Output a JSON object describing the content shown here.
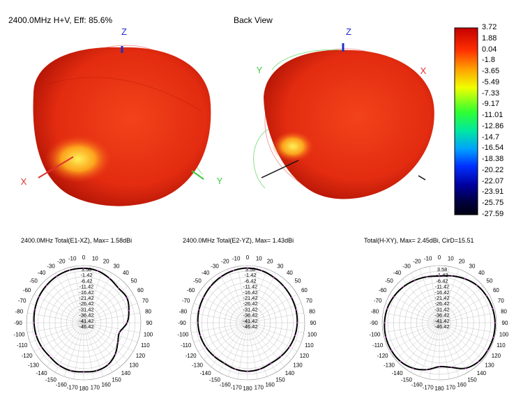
{
  "header": {
    "freq_label": "2400.0MHz H+V, Eff: 85.6%",
    "back_view_label": "Back View"
  },
  "axes3d": {
    "z": "Z",
    "x": "X",
    "y": "Y"
  },
  "colorbar": {
    "labels": [
      "3.72",
      "1.88",
      "0.04",
      "-1.8",
      "-3.65",
      "-5.49",
      "-7.33",
      "-9.17",
      "-11.01",
      "-12.86",
      "-14.7",
      "-16.54",
      "-18.38",
      "-20.22",
      "-22.07",
      "-23.91",
      "-25.75",
      "-27.59"
    ]
  },
  "colors": {
    "pattern_fill": "#e8320f",
    "pattern_dark": "#b81206",
    "hotspot": "#ffe33a",
    "curve": "#000000",
    "grid": "#c8c8c8",
    "marker": "#e040e0"
  },
  "chart_data": [
    {
      "type": "polar",
      "title": "2400.0MHz Total(E1-XZ), Max= 1.58dBi",
      "angle_labels": [
        "0",
        "10",
        "20",
        "30",
        "40",
        "50",
        "60",
        "70",
        "80",
        "90",
        "100",
        "110",
        "120",
        "130",
        "140",
        "150",
        "160",
        "170",
        "180",
        "-170",
        "-160",
        "-150",
        "-140",
        "-130",
        "-120",
        "-110",
        "-100",
        "-90",
        "-80",
        "-70",
        "-60",
        "-50",
        "-40",
        "-30",
        "-20",
        "-10"
      ],
      "radial_labels": [
        "3.58",
        "-1.42",
        "-6.42",
        "-11.42",
        "-16.42",
        "-21.42",
        "-26.42",
        "-31.42",
        "-36.42",
        "-41.42",
        "-46.42"
      ],
      "rlim": [
        -46.42,
        3.58
      ],
      "series": [
        {
          "angles": [
            0,
            15,
            30,
            45,
            60,
            75,
            90,
            105,
            120,
            135,
            150,
            165,
            180,
            -165,
            -150,
            -135,
            -120,
            -105,
            -90,
            -75,
            -60,
            -45,
            -30,
            -15
          ],
          "values": [
            1.2,
            0.6,
            -1.5,
            -3.5,
            -2.8,
            -5.5,
            -8.5,
            -14,
            -12,
            -7.5,
            -4,
            -3,
            -3.5,
            -3,
            -3.5,
            -4.5,
            -4,
            -3.5,
            -3,
            -2.2,
            -1.2,
            -0.3,
            0.6,
            1.2
          ]
        }
      ]
    },
    {
      "type": "polar",
      "title": "2400.0MHz Total(E2-YZ), Max= 1.43dBi",
      "angle_labels": [
        "0",
        "10",
        "20",
        "30",
        "40",
        "50",
        "60",
        "70",
        "80",
        "90",
        "100",
        "110",
        "120",
        "130",
        "140",
        "150",
        "160",
        "170",
        "180",
        "-170",
        "-160",
        "-150",
        "-140",
        "-130",
        "-120",
        "-110",
        "-100",
        "-90",
        "-80",
        "-70",
        "-60",
        "-50",
        "-40",
        "-30",
        "-20",
        "-10"
      ],
      "radial_labels": [
        "3.58",
        "-1.42",
        "-6.42",
        "-11.42",
        "-16.42",
        "-21.42",
        "-26.42",
        "-31.42",
        "-36.42",
        "-41.42",
        "-46.42"
      ],
      "rlim": [
        -46.42,
        3.58
      ],
      "series": [
        {
          "angles": [
            0,
            15,
            30,
            45,
            60,
            75,
            90,
            105,
            120,
            135,
            150,
            165,
            180,
            -165,
            -150,
            -135,
            -120,
            -105,
            -90,
            -75,
            -60,
            -45,
            -30,
            -15
          ],
          "values": [
            1.4,
            0.8,
            -0.5,
            -1.5,
            -2.2,
            -2.6,
            -3,
            -3.5,
            -4.2,
            -5,
            -5.5,
            -4.5,
            -4,
            -4.5,
            -5.5,
            -5,
            -4.2,
            -3.5,
            -3,
            -2.5,
            -2,
            -1,
            0,
            0.9
          ]
        }
      ]
    },
    {
      "type": "polar",
      "title": "Total(H-XY), Max= 2.45dBi, CirD=15.51",
      "angle_labels": [
        "0",
        "10",
        "20",
        "30",
        "40",
        "50",
        "60",
        "70",
        "80",
        "90",
        "100",
        "110",
        "120",
        "130",
        "140",
        "150",
        "160",
        "170",
        "180",
        "-170",
        "-160",
        "-150",
        "-140",
        "-130",
        "-120",
        "-110",
        "-100",
        "-90",
        "-80",
        "-70",
        "-60",
        "-50",
        "-40",
        "-30",
        "-20",
        "-10"
      ],
      "radial_labels": [
        "3.58",
        "-1.42",
        "-6.42",
        "-11.42",
        "-16.42",
        "-21.42",
        "-26.42",
        "-31.42",
        "-36.42",
        "-41.42",
        "-46.42"
      ],
      "rlim": [
        -46.42,
        3.58
      ],
      "series": [
        {
          "angles": [
            0,
            15,
            30,
            45,
            60,
            75,
            90,
            105,
            120,
            135,
            150,
            165,
            180,
            -165,
            -150,
            -135,
            -120,
            -105,
            -90,
            -75,
            -60,
            -45,
            -30,
            -15
          ],
          "values": [
            -5.5,
            -4,
            -2,
            0,
            1,
            1.8,
            2.3,
            2.45,
            2.2,
            1.8,
            -0.5,
            -6,
            -8,
            -4,
            -0.5,
            1.5,
            2,
            2,
            1.5,
            0.8,
            -0.5,
            -2,
            -3.5,
            -4.8
          ]
        }
      ]
    }
  ]
}
